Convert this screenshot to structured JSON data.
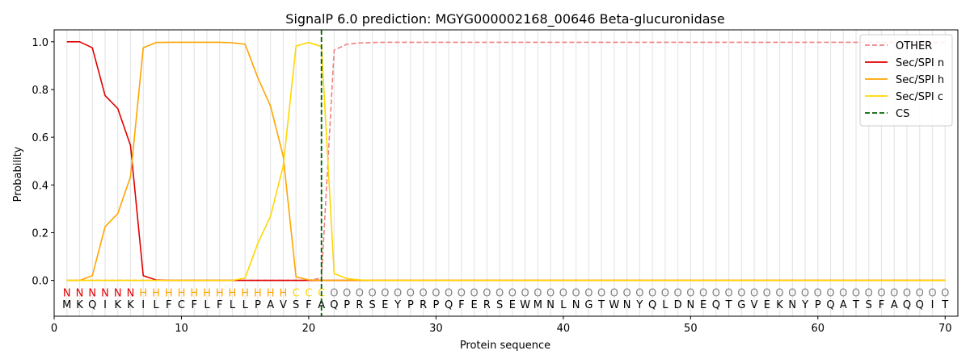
{
  "chart_data": {
    "type": "line",
    "title": "SignalP 6.0 prediction: MGYG000002168_00646 Beta-glucuronidase",
    "xlabel": "Protein sequence",
    "ylabel": "Probability",
    "xlim": [
      0,
      71
    ],
    "ylim": [
      -0.15,
      1.05
    ],
    "xticks": [
      0,
      10,
      20,
      30,
      40,
      50,
      60,
      70
    ],
    "yticks": [
      0.0,
      0.2,
      0.4,
      0.6,
      0.8,
      1.0
    ],
    "ytick_labels": [
      "0.0",
      "0.2",
      "0.4",
      "0.6",
      "0.8",
      "1.0"
    ],
    "legend_position": "top-right",
    "x": [
      1,
      2,
      3,
      4,
      5,
      6,
      7,
      8,
      9,
      10,
      11,
      12,
      13,
      14,
      15,
      16,
      17,
      18,
      19,
      20,
      21,
      22,
      23,
      24,
      25,
      26,
      27,
      28,
      29,
      30,
      31,
      32,
      33,
      34,
      35,
      36,
      37,
      38,
      39,
      40,
      41,
      42,
      43,
      44,
      45,
      46,
      47,
      48,
      49,
      50,
      51,
      52,
      53,
      54,
      55,
      56,
      57,
      58,
      59,
      60,
      61,
      62,
      63,
      64,
      65,
      66,
      67,
      68,
      69,
      70
    ],
    "series": [
      {
        "name": "OTHER",
        "color": "#f08080",
        "dash": "dashed",
        "values": [
          0,
          0,
          0,
          0,
          0,
          0,
          0,
          0,
          0,
          0,
          0,
          0,
          0,
          0,
          0,
          0,
          0,
          0,
          0,
          0,
          0.01,
          0.965,
          0.99,
          0.995,
          0.997,
          0.998,
          0.998,
          0.998,
          0.998,
          0.998,
          0.998,
          0.998,
          0.998,
          0.998,
          0.998,
          0.998,
          0.998,
          0.998,
          0.998,
          0.998,
          0.998,
          0.998,
          0.998,
          0.998,
          0.998,
          0.998,
          0.998,
          0.998,
          0.998,
          0.998,
          0.998,
          0.998,
          0.998,
          0.998,
          0.998,
          0.998,
          0.998,
          0.998,
          0.998,
          0.998,
          0.998,
          0.998,
          0.998,
          0.998,
          0.998,
          0.998,
          0.998,
          0.998,
          0.998,
          0.998
        ]
      },
      {
        "name": "Sec/SPI n",
        "color": "#e00000",
        "dash": "solid",
        "values": [
          1.0,
          1.0,
          0.975,
          0.775,
          0.72,
          0.565,
          0.02,
          0.002,
          0,
          0,
          0,
          0,
          0,
          0,
          0,
          0,
          0,
          0,
          0,
          0,
          0,
          0,
          0,
          0,
          0,
          0,
          0,
          0,
          0,
          0,
          0,
          0,
          0,
          0,
          0,
          0,
          0,
          0,
          0,
          0,
          0,
          0,
          0,
          0,
          0,
          0,
          0,
          0,
          0,
          0,
          0,
          0,
          0,
          0,
          0,
          0,
          0,
          0,
          0,
          0,
          0,
          0,
          0,
          0,
          0,
          0,
          0,
          0,
          0,
          0
        ]
      },
      {
        "name": "Sec/SPI h",
        "color": "#ffa500",
        "dash": "solid",
        "values": [
          0,
          0,
          0.02,
          0.225,
          0.28,
          0.435,
          0.975,
          0.997,
          0.998,
          0.998,
          0.998,
          0.998,
          0.998,
          0.996,
          0.99,
          0.85,
          0.73,
          0.52,
          0.015,
          0.002,
          0,
          0,
          0,
          0,
          0,
          0,
          0,
          0,
          0,
          0,
          0,
          0,
          0,
          0,
          0,
          0,
          0,
          0,
          0,
          0,
          0,
          0,
          0,
          0,
          0,
          0,
          0,
          0,
          0,
          0,
          0,
          0,
          0,
          0,
          0,
          0,
          0,
          0,
          0,
          0,
          0,
          0,
          0,
          0,
          0,
          0,
          0,
          0,
          0,
          0
        ]
      },
      {
        "name": "Sec/SPI c",
        "color": "#ffd700",
        "dash": "solid",
        "values": [
          0,
          0,
          0,
          0,
          0,
          0,
          0,
          0,
          0,
          0,
          0,
          0,
          0,
          0,
          0.01,
          0.155,
          0.27,
          0.48,
          0.982,
          0.997,
          0.98,
          0.028,
          0.008,
          0.002,
          0,
          0,
          0,
          0,
          0,
          0,
          0,
          0,
          0,
          0,
          0,
          0,
          0,
          0,
          0,
          0,
          0,
          0,
          0,
          0,
          0,
          0,
          0,
          0,
          0,
          0,
          0,
          0,
          0,
          0,
          0,
          0,
          0,
          0,
          0,
          0,
          0,
          0,
          0,
          0,
          0,
          0,
          0,
          0,
          0,
          0
        ]
      }
    ],
    "cs": {
      "name": "CS",
      "color": "#006400",
      "x": 21
    },
    "sequence": [
      "M",
      "K",
      "Q",
      "I",
      "K",
      "K",
      "I",
      "L",
      "F",
      "C",
      "F",
      "L",
      "F",
      "L",
      "L",
      "P",
      "A",
      "V",
      "S",
      "F",
      "A",
      "Q",
      "P",
      "R",
      "S",
      "E",
      "Y",
      "P",
      "R",
      "P",
      "Q",
      "F",
      "E",
      "R",
      "S",
      "E",
      "W",
      "M",
      "N",
      "L",
      "N",
      "G",
      "T",
      "W",
      "N",
      "Y",
      "Q",
      "L",
      "D",
      "N",
      "E",
      "Q",
      "T",
      "G",
      "V",
      "E",
      "K",
      "N",
      "Y",
      "P",
      "Q",
      "A",
      "T",
      "S",
      "F",
      "A",
      "Q",
      "Q",
      "I",
      "T"
    ],
    "labels": [
      "N",
      "N",
      "N",
      "N",
      "N",
      "N",
      "H",
      "H",
      "H",
      "H",
      "H",
      "H",
      "H",
      "H",
      "H",
      "H",
      "H",
      "H",
      "C",
      "C",
      "C",
      "O",
      "O",
      "O",
      "O",
      "O",
      "O",
      "O",
      "O",
      "O",
      "O",
      "O",
      "O",
      "O",
      "O",
      "O",
      "O",
      "O",
      "O",
      "O",
      "O",
      "O",
      "O",
      "O",
      "O",
      "O",
      "O",
      "O",
      "O",
      "O",
      "O",
      "O",
      "O",
      "O",
      "O",
      "O",
      "O",
      "O",
      "O",
      "O",
      "O",
      "O",
      "O",
      "O",
      "O",
      "O",
      "O",
      "O",
      "O",
      "O"
    ],
    "label_colors": {
      "N": "#e00000",
      "H": "#ffa500",
      "C": "#ffd700",
      "O": "#808080"
    }
  }
}
